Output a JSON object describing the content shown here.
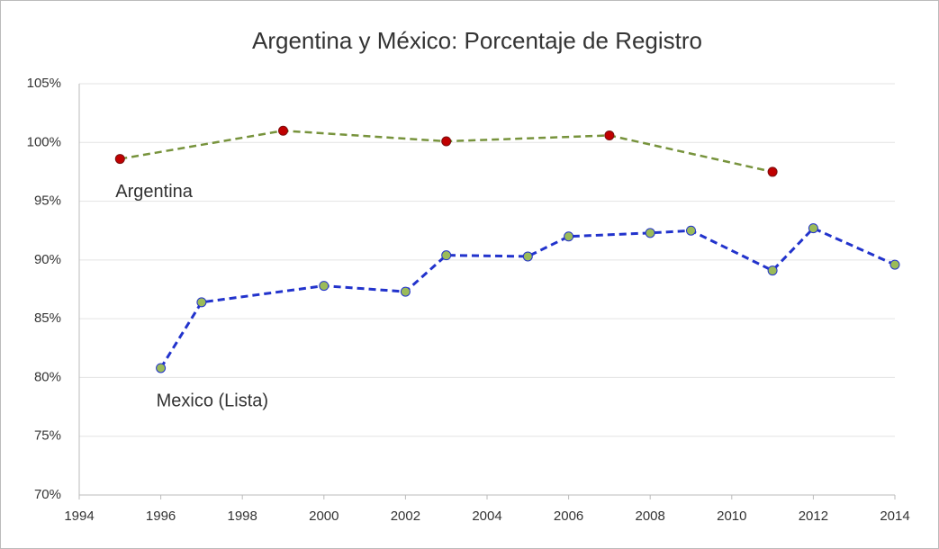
{
  "chart_data": {
    "type": "line",
    "title": "Argentina y México: Porcentaje de Registro",
    "series": [
      {
        "name": "Argentina",
        "color": "#77933c",
        "marker_color": "#c00000",
        "x": [
          1995,
          1999,
          2003,
          2007,
          2011
        ],
        "values": [
          98.6,
          101.0,
          100.1,
          100.6,
          97.5
        ]
      },
      {
        "name": "Mexico (Lista)",
        "color": "#2233cc",
        "marker_color": "#9bbb59",
        "x": [
          1996,
          1997,
          2000,
          2002,
          2003,
          2005,
          2006,
          2008,
          2009,
          2011,
          2012,
          2014
        ],
        "values": [
          80.8,
          86.4,
          87.8,
          87.3,
          90.4,
          90.3,
          92.0,
          92.3,
          92.5,
          89.1,
          92.7,
          89.6
        ]
      }
    ],
    "xlim": [
      1994,
      2014
    ],
    "xticks": [
      1994,
      1996,
      1998,
      2000,
      2002,
      2004,
      2006,
      2008,
      2010,
      2012,
      2014
    ],
    "ylim": [
      70,
      105
    ],
    "yticks": [
      {
        "value": 70,
        "label": "70%"
      },
      {
        "value": 75,
        "label": "75%"
      },
      {
        "value": 80,
        "label": "80%"
      },
      {
        "value": 85,
        "label": "85%"
      },
      {
        "value": 90,
        "label": "90%"
      },
      {
        "value": 95,
        "label": "95%"
      },
      {
        "value": 100,
        "label": "100%"
      },
      {
        "value": 105,
        "label": "105%"
      }
    ],
    "grid": true
  }
}
